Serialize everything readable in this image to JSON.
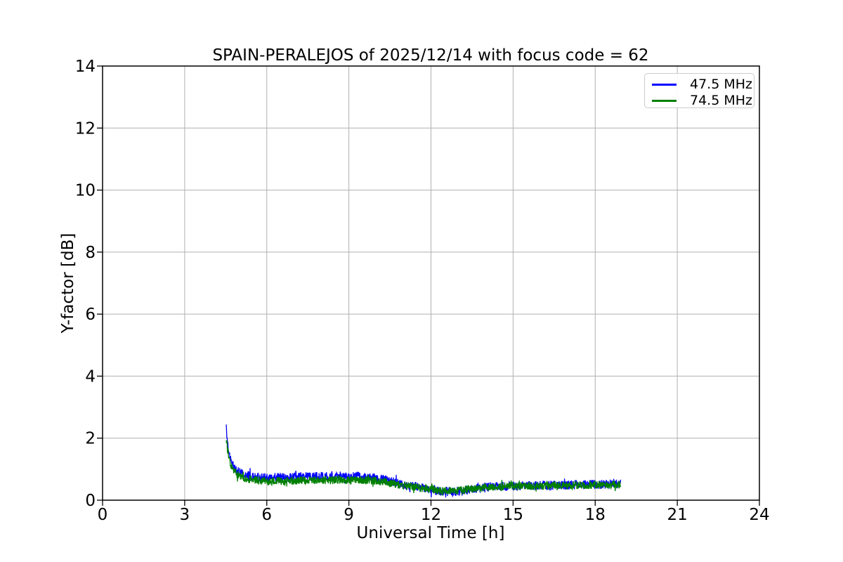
{
  "chart_data": {
    "type": "line",
    "title": "SPAIN-PERALEJOS of 2025/12/14 with focus code = 62",
    "xlabel": "Universal Time [h]",
    "ylabel": "Y-factor [dB]",
    "xlim": [
      0,
      24
    ],
    "ylim": [
      0,
      14
    ],
    "xticks": [
      0,
      3,
      6,
      9,
      12,
      15,
      18,
      21,
      24
    ],
    "yticks": [
      0,
      2,
      4,
      6,
      8,
      10,
      12,
      14
    ],
    "grid": true,
    "legend": {
      "position": "upper right",
      "entries": [
        "47.5 MHz",
        "74.5 MHz"
      ]
    },
    "series": [
      {
        "name": "47.5 MHz",
        "color": "#0000ff",
        "x_start": 4.52,
        "x_end": 18.93,
        "x_step": 0.01,
        "noise_amplitude": 0.15,
        "mean_points": [
          [
            4.52,
            2.33
          ],
          [
            4.56,
            1.95
          ],
          [
            4.6,
            1.65
          ],
          [
            4.65,
            1.42
          ],
          [
            4.72,
            1.22
          ],
          [
            4.8,
            1.07
          ],
          [
            4.9,
            0.96
          ],
          [
            5.0,
            0.89
          ],
          [
            5.2,
            0.81
          ],
          [
            5.45,
            0.77
          ],
          [
            5.7,
            0.74
          ],
          [
            6.0,
            0.73
          ],
          [
            6.5,
            0.73
          ],
          [
            7.0,
            0.75
          ],
          [
            7.5,
            0.76
          ],
          [
            8.0,
            0.76
          ],
          [
            8.5,
            0.77
          ],
          [
            9.0,
            0.77
          ],
          [
            9.4,
            0.76
          ],
          [
            9.7,
            0.75
          ],
          [
            10.0,
            0.73
          ],
          [
            10.3,
            0.66
          ],
          [
            10.7,
            0.57
          ],
          [
            11.1,
            0.49
          ],
          [
            11.6,
            0.41
          ],
          [
            12.0,
            0.34
          ],
          [
            12.4,
            0.29
          ],
          [
            12.8,
            0.28
          ],
          [
            13.2,
            0.32
          ],
          [
            13.6,
            0.38
          ],
          [
            14.0,
            0.42
          ],
          [
            14.5,
            0.44
          ],
          [
            15.0,
            0.45
          ],
          [
            15.5,
            0.46
          ],
          [
            16.0,
            0.47
          ],
          [
            16.5,
            0.48
          ],
          [
            17.0,
            0.49
          ],
          [
            17.5,
            0.5
          ],
          [
            18.0,
            0.51
          ],
          [
            18.5,
            0.52
          ],
          [
            18.93,
            0.52
          ]
        ]
      },
      {
        "name": "74.5 MHz",
        "color": "#008000",
        "x_start": 4.52,
        "x_end": 18.93,
        "x_step": 0.01,
        "noise_amplitude": 0.13,
        "mean_points": [
          [
            4.52,
            2.02
          ],
          [
            4.56,
            1.7
          ],
          [
            4.6,
            1.45
          ],
          [
            4.65,
            1.25
          ],
          [
            4.72,
            1.07
          ],
          [
            4.8,
            0.94
          ],
          [
            4.9,
            0.84
          ],
          [
            5.0,
            0.78
          ],
          [
            5.2,
            0.7
          ],
          [
            5.45,
            0.66
          ],
          [
            5.7,
            0.64
          ],
          [
            6.0,
            0.62
          ],
          [
            6.5,
            0.62
          ],
          [
            7.0,
            0.63
          ],
          [
            7.5,
            0.64
          ],
          [
            8.0,
            0.64
          ],
          [
            8.5,
            0.65
          ],
          [
            9.0,
            0.65
          ],
          [
            9.4,
            0.64
          ],
          [
            9.7,
            0.64
          ],
          [
            10.0,
            0.62
          ],
          [
            10.3,
            0.58
          ],
          [
            10.7,
            0.52
          ],
          [
            11.1,
            0.46
          ],
          [
            11.6,
            0.4
          ],
          [
            12.0,
            0.35
          ],
          [
            12.4,
            0.31
          ],
          [
            12.8,
            0.3
          ],
          [
            13.2,
            0.33
          ],
          [
            13.6,
            0.38
          ],
          [
            14.0,
            0.42
          ],
          [
            14.5,
            0.44
          ],
          [
            15.0,
            0.45
          ],
          [
            15.5,
            0.45
          ],
          [
            16.0,
            0.46
          ],
          [
            16.5,
            0.47
          ],
          [
            17.0,
            0.48
          ],
          [
            17.5,
            0.49
          ],
          [
            18.0,
            0.49
          ],
          [
            18.5,
            0.5
          ],
          [
            18.93,
            0.5
          ]
        ]
      }
    ],
    "colors": {
      "background": "#ffffff",
      "spine": "#000000",
      "grid": "#b0b0b0",
      "legend_border": "#cccccc",
      "text": "#000000"
    }
  }
}
